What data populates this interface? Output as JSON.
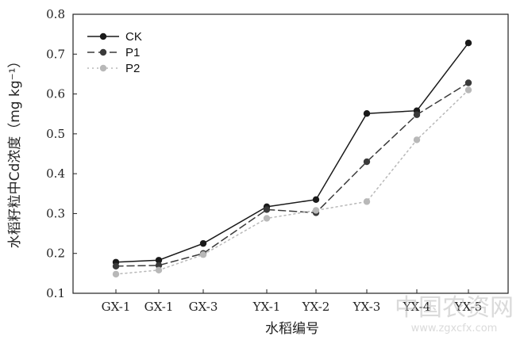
{
  "chart_data": {
    "type": "line",
    "xlabel": "水稻编号",
    "ylabel": "水稻籽粒中Cd浓度（mg kg⁻¹）",
    "categories": [
      "GX-1",
      "GX-1",
      "GX-3",
      "YX-1",
      "YX-2",
      "YX-3",
      "YX-4",
      "YX-5"
    ],
    "ylim": [
      0.1,
      0.8
    ],
    "yticks": [
      "0.1",
      "0.2",
      "0.3",
      "0.4",
      "0.5",
      "0.6",
      "0.7",
      "0.8"
    ],
    "grid": false,
    "legend_position": "top-left",
    "series": [
      {
        "name": "CK",
        "color": "#1a1a1a",
        "style": "solid",
        "values": [
          0.178,
          0.183,
          0.225,
          0.317,
          0.335,
          0.551,
          0.558,
          0.728
        ]
      },
      {
        "name": "P1",
        "color": "#3a3a3a",
        "style": "dashed",
        "values": [
          0.168,
          0.17,
          0.2,
          0.31,
          0.302,
          0.43,
          0.548,
          0.628
        ]
      },
      {
        "name": "P2",
        "color": "#b8b8b8",
        "style": "dotted",
        "values": [
          0.148,
          0.158,
          0.197,
          0.288,
          0.308,
          0.33,
          0.485,
          0.61
        ]
      }
    ]
  },
  "watermark": {
    "text": "中国农资网",
    "url": "www.zgxcfx.com"
  }
}
